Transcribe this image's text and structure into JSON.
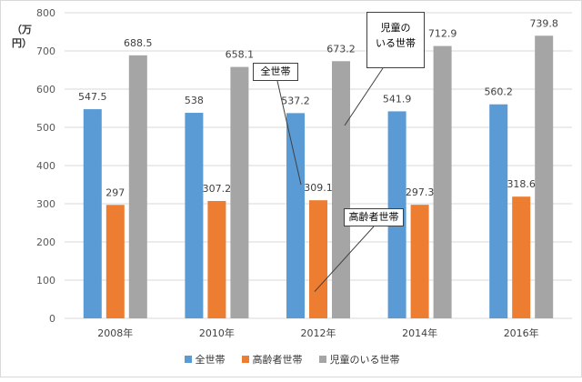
{
  "chart_data": {
    "type": "bar",
    "ylabel": "（万円）",
    "ylim": [
      0,
      800
    ],
    "yticks": [
      0,
      100,
      200,
      300,
      400,
      500,
      600,
      700,
      800
    ],
    "grid": true,
    "legend_position": "bottom",
    "categories": [
      "2008年",
      "2010年",
      "2012年",
      "2014年",
      "2016年"
    ],
    "series": [
      {
        "name": "全世帯",
        "color": "#5b9bd5",
        "values": [
          547.5,
          538,
          537.2,
          541.9,
          560.2
        ]
      },
      {
        "name": "高齢者世帯",
        "color": "#ed7d31",
        "values": [
          297,
          307.2,
          309.1,
          297.3,
          318.6
        ]
      },
      {
        "name": "児童のいる世帯",
        "color": "#a5a5a5",
        "values": [
          688.5,
          658.1,
          673.2,
          712.9,
          739.8
        ]
      }
    ],
    "data_labels": [
      [
        "547.5",
        "538",
        "537.2",
        "541.9",
        "560.2"
      ],
      [
        "297",
        "307.2",
        "309.1",
        "297.3",
        "318.6"
      ],
      [
        "688.5",
        "658.1",
        "673.2",
        "712.9",
        "739.8"
      ]
    ],
    "annotations": [
      {
        "text": "全世帯",
        "points_to": "全世帯 2012年"
      },
      {
        "text": "高齢者世帯",
        "points_to": "高齢者世帯 2012年"
      },
      {
        "text_line1": "児童の",
        "text_line2": "いる世帯",
        "points_to": "児童のいる世帯 2012年"
      }
    ]
  }
}
